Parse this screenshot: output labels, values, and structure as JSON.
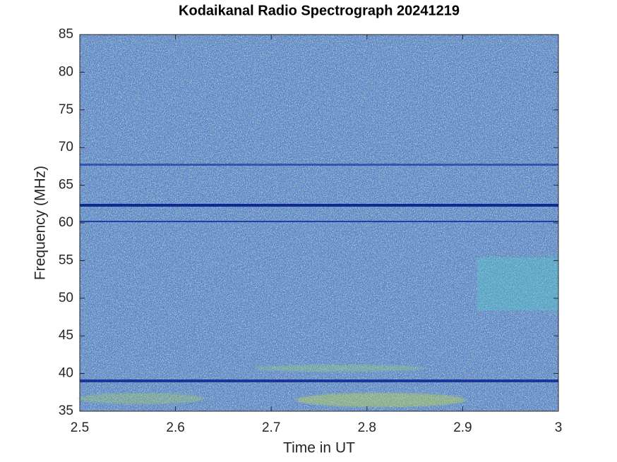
{
  "chart_data": {
    "type": "spectrogram",
    "title": "Kodaikanal Radio Spectrograph  20241219",
    "xlabel": "Time in UT",
    "ylabel": "Frequency (MHz)",
    "xlim": [
      2.5,
      3
    ],
    "ylim": [
      35,
      85
    ],
    "xticks": [
      2.5,
      2.6,
      2.7,
      2.8,
      2.9,
      3
    ],
    "yticks": [
      35,
      40,
      45,
      50,
      55,
      60,
      65,
      70,
      75,
      80,
      85
    ]
  }
}
